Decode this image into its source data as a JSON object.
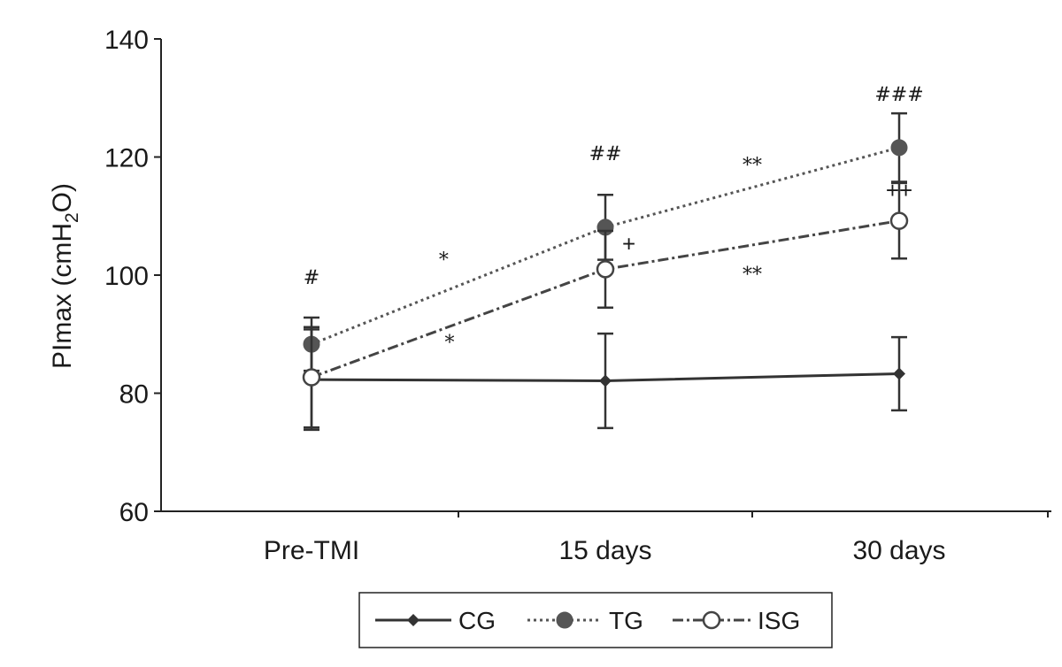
{
  "chart_data": {
    "type": "line",
    "ylabel": "PImax (cmH₂O)",
    "ylabel_parts": {
      "before": "PImax (cmH",
      "sub": "2",
      "after": "O)"
    },
    "xlabel": "",
    "categories": [
      "Pre-TMI",
      "15 days",
      "30 days"
    ],
    "ylim": [
      60,
      140
    ],
    "yticks": [
      60,
      80,
      100,
      120,
      140
    ],
    "grid": false,
    "legend_position": "bottom",
    "series": [
      {
        "name": "CG",
        "values": [
          82.3,
          82.1,
          83.3
        ],
        "errors": [
          8.5,
          8.0,
          6.2
        ],
        "marker": "filled-diamond",
        "line": "solid",
        "color": "#333333"
      },
      {
        "name": "TG",
        "values": [
          88.3,
          108.1,
          121.6
        ],
        "errors": [
          4.5,
          5.5,
          5.8
        ],
        "marker": "filled-circle",
        "line": "dotted",
        "color": "#555555"
      },
      {
        "name": "ISG",
        "values": [
          82.7,
          101.0,
          109.2
        ],
        "errors": [
          8.5,
          6.5,
          6.4
        ],
        "marker": "open-circle",
        "line": "dashdot",
        "color": "#444444"
      }
    ],
    "annotations": [
      {
        "text": "#",
        "x": 0.0,
        "y": 98.5
      },
      {
        "text": "##",
        "x": 1.0,
        "y": 119.5
      },
      {
        "text": "###",
        "x": 2.0,
        "y": 129.5
      },
      {
        "text": "*",
        "x": 0.45,
        "y": 101.5
      },
      {
        "text": "*",
        "x": 0.47,
        "y": 87.5
      },
      {
        "text": "**",
        "x": 1.5,
        "y": 117.5
      },
      {
        "text": "**",
        "x": 1.5,
        "y": 99.0
      },
      {
        "text": "+",
        "x": 1.08,
        "y": 104.0
      },
      {
        "text": "++",
        "x": 2.11,
        "y": 113.0
      }
    ]
  }
}
